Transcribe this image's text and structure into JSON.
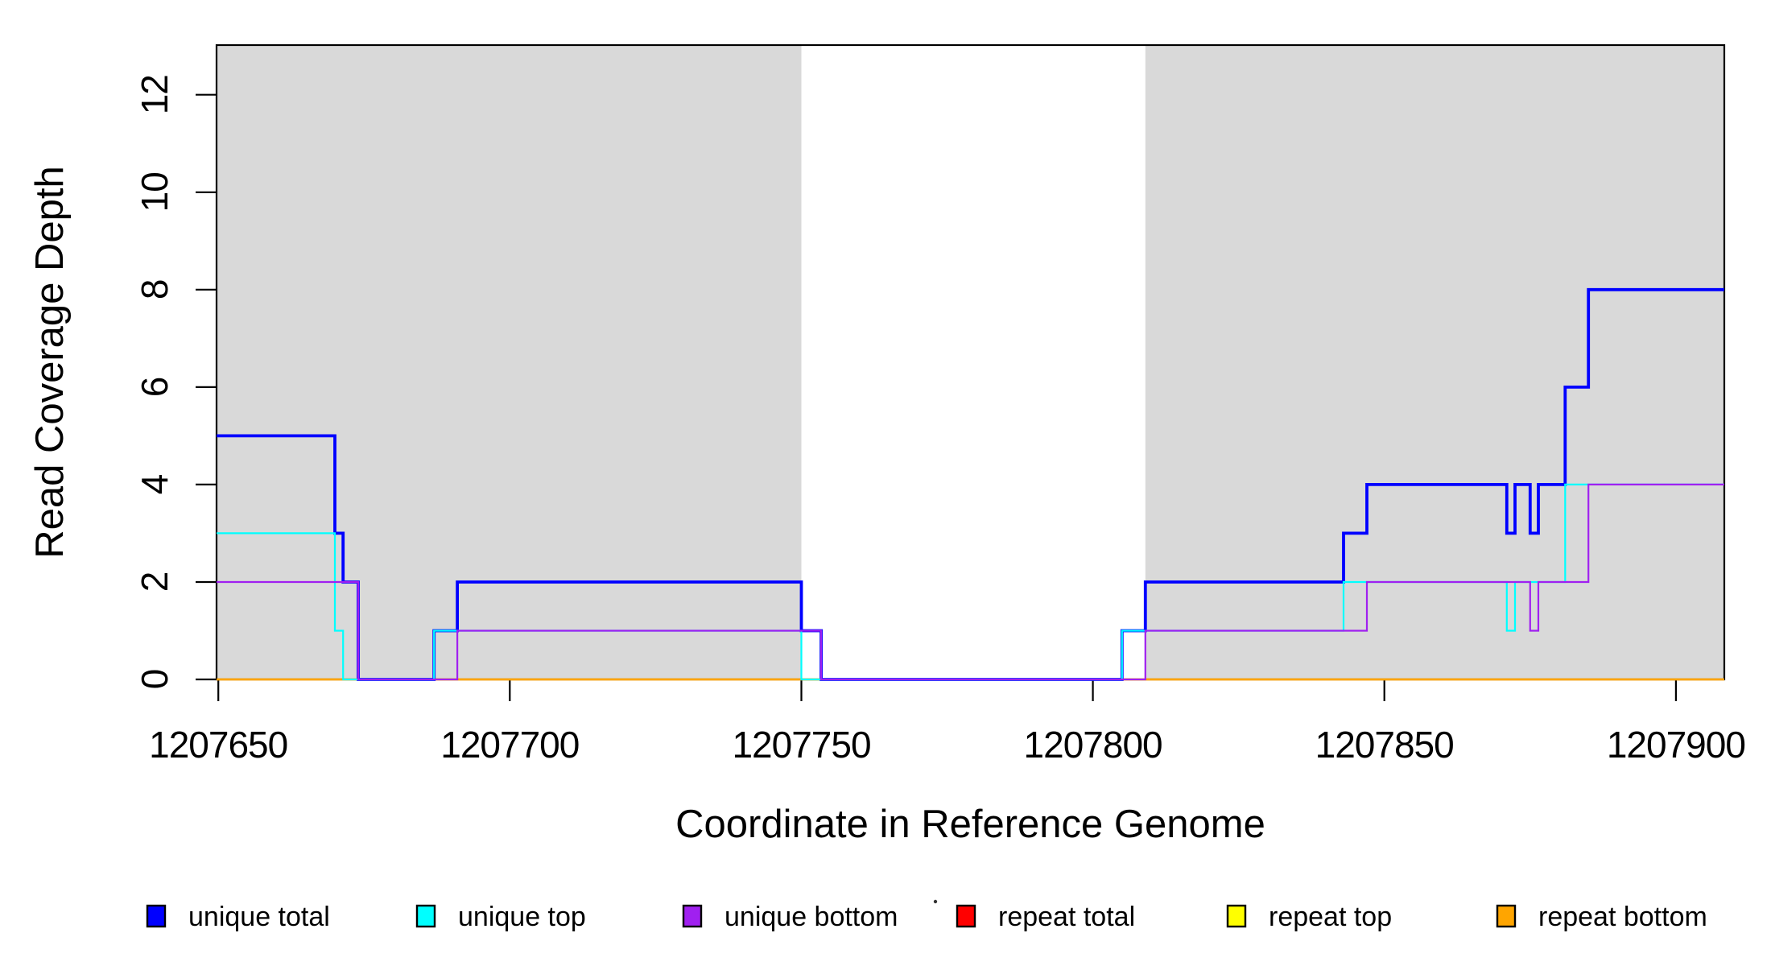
{
  "chart_data": {
    "type": "line",
    "subtype": "step",
    "title": "",
    "xlabel": "Coordinate in Reference Genome",
    "ylabel": "Read Coverage Depth",
    "xlim": [
      1207649.7,
      1207908.3
    ],
    "ylim": [
      0,
      13.02
    ],
    "grid": false,
    "legend_position": "bottom",
    "background_color": "#FFFFFF",
    "shade_color": "#D9D9D9",
    "x_ticks": [
      1207650,
      1207700,
      1207750,
      1207800,
      1207850,
      1207900
    ],
    "x_tick_labels": [
      "1207650",
      "1207700",
      "1207750",
      "1207800",
      "1207850",
      "1207900"
    ],
    "y_ticks": [
      0,
      2,
      4,
      6,
      8,
      10,
      12
    ],
    "y_tick_labels": [
      "0",
      "2",
      "4",
      "6",
      "8",
      "10",
      "12"
    ],
    "shaded_regions": [
      {
        "x0": 1207649.7,
        "x1": 1207750,
        "color": "#D9D9D9"
      },
      {
        "x0": 1207809,
        "x1": 1207908.3,
        "color": "#D9D9D9"
      }
    ],
    "series": [
      {
        "name": "unique total",
        "color": "#0000FF",
        "width": 3.8,
        "z": 4,
        "points": [
          [
            1207649.7,
            5
          ],
          [
            1207670,
            3
          ],
          [
            1207671.4,
            2
          ],
          [
            1207674,
            0
          ],
          [
            1207687,
            1
          ],
          [
            1207691,
            2
          ],
          [
            1207750,
            1
          ],
          [
            1207753.4,
            0
          ],
          [
            1207805,
            1
          ],
          [
            1207809,
            2
          ],
          [
            1207843,
            3
          ],
          [
            1207847,
            4
          ],
          [
            1207871,
            3
          ],
          [
            1207872.4,
            4
          ],
          [
            1207875,
            3
          ],
          [
            1207876.4,
            4
          ],
          [
            1207881,
            6
          ],
          [
            1207885,
            8
          ]
        ]
      },
      {
        "name": "unique top",
        "color": "#00FFFF",
        "width": 2.2,
        "z": 5,
        "points": [
          [
            1207649.7,
            3
          ],
          [
            1207670,
            1
          ],
          [
            1207671.4,
            0
          ],
          [
            1207687,
            1
          ],
          [
            1207750,
            0
          ],
          [
            1207805,
            1
          ],
          [
            1207843,
            2
          ],
          [
            1207871,
            1
          ],
          [
            1207872.4,
            2
          ],
          [
            1207881,
            4
          ]
        ]
      },
      {
        "name": "unique bottom",
        "color": "#A020F0",
        "width": 2.2,
        "z": 6,
        "points": [
          [
            1207649.7,
            2
          ],
          [
            1207674,
            0
          ],
          [
            1207691,
            1
          ],
          [
            1207753.4,
            0
          ],
          [
            1207809,
            1
          ],
          [
            1207847,
            2
          ],
          [
            1207875,
            1
          ],
          [
            1207876.4,
            2
          ],
          [
            1207885,
            4
          ]
        ]
      },
      {
        "name": "repeat total",
        "color": "#FF0000",
        "width": 2.2,
        "z": 1,
        "points": [
          [
            1207649.7,
            0
          ]
        ]
      },
      {
        "name": "repeat top",
        "color": "#FFFF00",
        "width": 2.2,
        "z": 2,
        "points": [
          [
            1207649.7,
            0
          ]
        ]
      },
      {
        "name": "repeat bottom",
        "color": "#FFA500",
        "width": 2.6,
        "z": 3,
        "points": [
          [
            1207649.7,
            0
          ]
        ]
      }
    ],
    "legend_labels": [
      "unique total",
      "unique top",
      "unique bottom",
      "repeat total",
      "repeat top",
      "repeat bottom"
    ]
  }
}
